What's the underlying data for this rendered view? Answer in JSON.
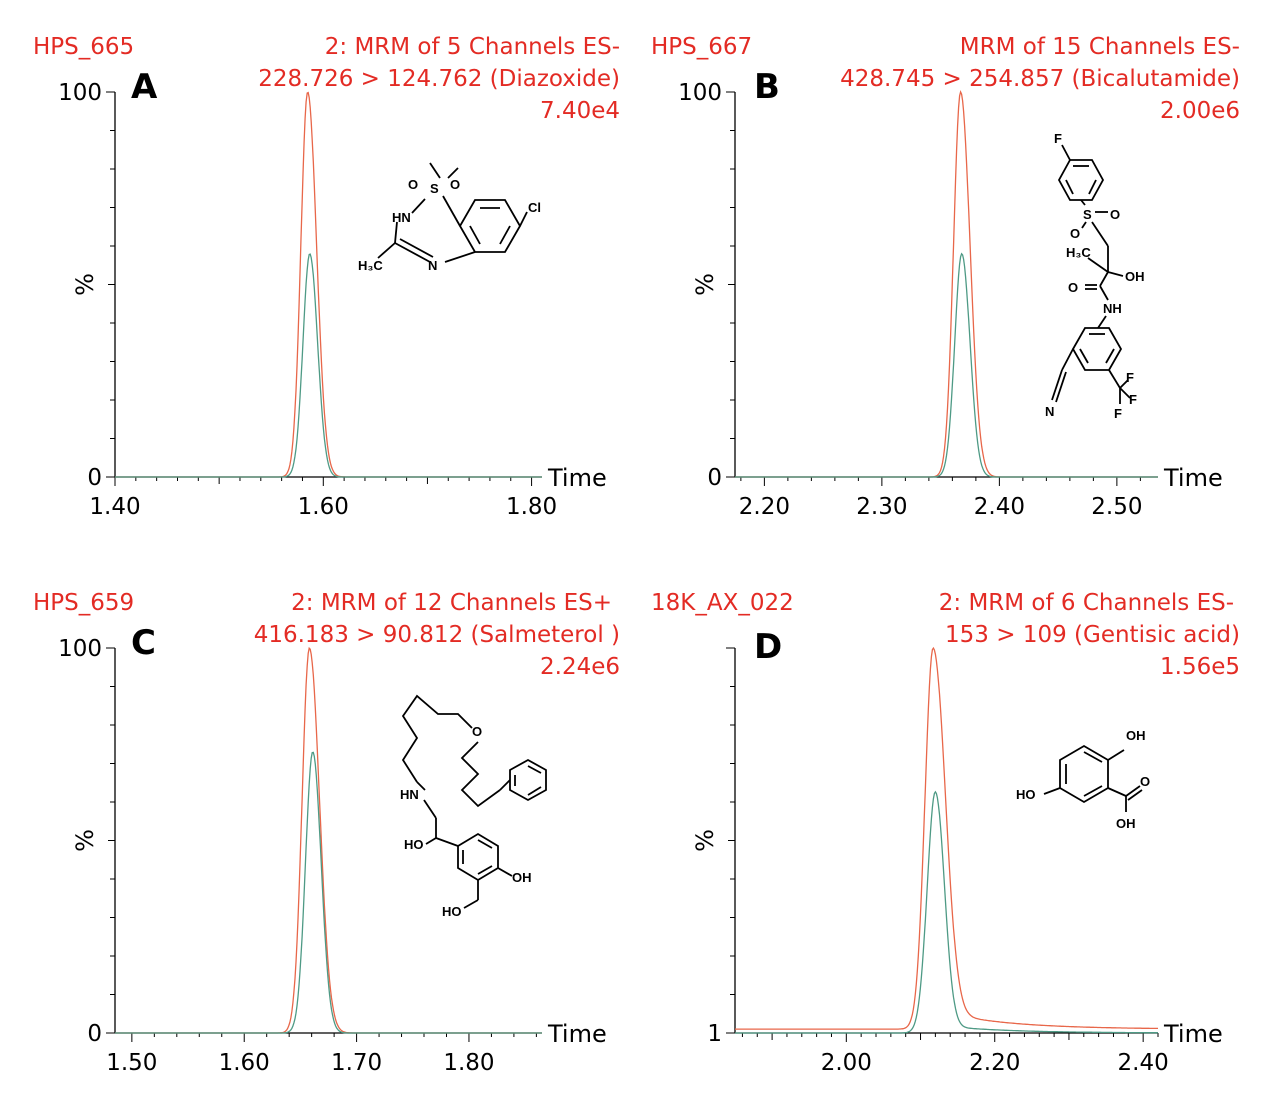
{
  "chart_data": [
    {
      "type": "line",
      "panel_label": "A",
      "sample": "HPS_665",
      "function": "2: MRM of 5 Channels ES-",
      "transition": "228.726 > 124.762 (Diazoxide)",
      "intensity": "7.40e4",
      "xlabel": "Time",
      "ylabel": "%",
      "xlim": [
        1.4,
        1.81
      ],
      "ylim": [
        0,
        100
      ],
      "xticks": [
        "1.40",
        "1.60",
        "1.80"
      ],
      "yticks": [
        "0",
        "100"
      ],
      "series": [
        {
          "color": "#e8674a",
          "peak_x": 1.585,
          "peak_y": 100,
          "sigma_left": 0.0065,
          "sigma_right": 0.0085,
          "baseline": 0
        },
        {
          "color": "#4e9a85",
          "peak_x": 1.587,
          "peak_y": 58,
          "sigma_left": 0.0065,
          "sigma_right": 0.0075,
          "baseline": 0
        }
      ]
    },
    {
      "type": "line",
      "panel_label": "B",
      "sample": "HPS_667",
      "function": "MRM of 15 Channels ES-",
      "transition": "428.745 > 254.857 (Bicalutamide)",
      "intensity": "2.00e6",
      "xlabel": "Time",
      "ylabel": "%",
      "xlim": [
        2.175,
        2.535
      ],
      "ylim": [
        0,
        100
      ],
      "xticks": [
        "2.20",
        "2.30",
        "2.40",
        "2.50"
      ],
      "yticks": [
        "0",
        "100"
      ],
      "series": [
        {
          "color": "#e8674a",
          "peak_x": 2.367,
          "peak_y": 100,
          "sigma_left": 0.006,
          "sigma_right": 0.008,
          "baseline": 0
        },
        {
          "color": "#4e9a85",
          "peak_x": 2.368,
          "peak_y": 58,
          "sigma_left": 0.006,
          "sigma_right": 0.007,
          "baseline": 0
        }
      ]
    },
    {
      "type": "line",
      "panel_label": "C",
      "sample": "HPS_659",
      "function": "2: MRM of 12 Channels ES+",
      "transition": "416.183 > 90.812 (Salmeterol )",
      "intensity": "2.24e6",
      "xlabel": "Time",
      "ylabel": "%",
      "xlim": [
        1.485,
        1.865
      ],
      "ylim": [
        0,
        100
      ],
      "xticks": [
        "1.50",
        "1.60",
        "1.70",
        "1.80"
      ],
      "yticks": [
        "0",
        "100"
      ],
      "series": [
        {
          "color": "#e8674a",
          "peak_x": 1.658,
          "peak_y": 100,
          "sigma_left": 0.0065,
          "sigma_right": 0.009,
          "baseline": 0
        },
        {
          "color": "#4e9a85",
          "peak_x": 1.661,
          "peak_y": 73,
          "sigma_left": 0.0065,
          "sigma_right": 0.0075,
          "baseline": 0
        }
      ]
    },
    {
      "type": "line",
      "panel_label": "D",
      "sample": "18K_AX_022",
      "function": "2: MRM of 6 Channels ES-",
      "transition": "153 > 109 (Gentisic acid)",
      "intensity": "1.56e5",
      "xlabel": "Time",
      "ylabel": "%",
      "xlim": [
        1.85,
        2.42
      ],
      "ylim": [
        1,
        100
      ],
      "xticks": [
        "2.00",
        "2.20",
        "2.40"
      ],
      "yticks": [
        "1",
        ""
      ],
      "series": [
        {
          "color": "#e8674a",
          "peak_x": 2.117,
          "peak_y": 100,
          "sigma_left": 0.011,
          "sigma_right": 0.016,
          "baseline": 2,
          "tail": 5
        },
        {
          "color": "#4e9a85",
          "peak_x": 2.12,
          "peak_y": 63,
          "sigma_left": 0.011,
          "sigma_right": 0.012,
          "baseline": 1,
          "tail": 2
        }
      ]
    }
  ]
}
